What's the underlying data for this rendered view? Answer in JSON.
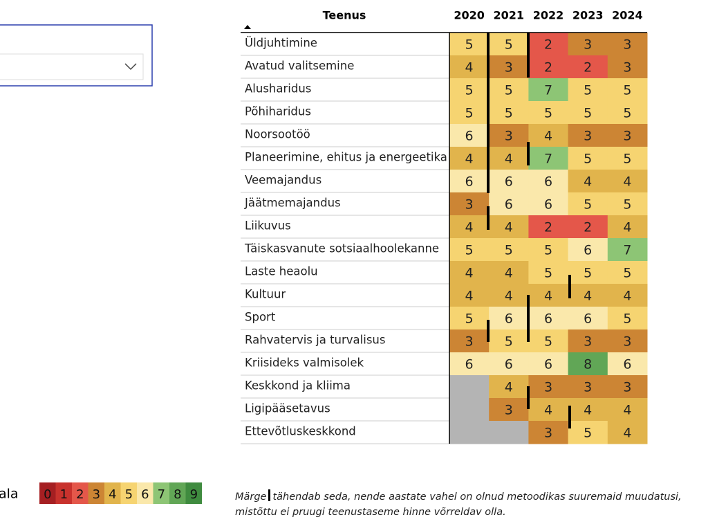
{
  "table": {
    "header": {
      "name": "Teenus",
      "years": [
        "2020",
        "2021",
        "2022",
        "2023",
        "2024"
      ]
    },
    "rows": [
      {
        "name": "Üldjuhtimine",
        "values": [
          5,
          5,
          2,
          3,
          3
        ]
      },
      {
        "name": "Avatud valitsemine",
        "values": [
          4,
          3,
          2,
          2,
          3
        ]
      },
      {
        "name": "Alusharidus",
        "values": [
          5,
          5,
          7,
          5,
          5
        ]
      },
      {
        "name": "Põhiharidus",
        "values": [
          5,
          5,
          5,
          5,
          5
        ]
      },
      {
        "name": "Noorsootöö",
        "values": [
          6,
          3,
          4,
          3,
          3
        ]
      },
      {
        "name": "Planeerimine, ehitus ja energeetika",
        "values": [
          4,
          4,
          7,
          5,
          5
        ]
      },
      {
        "name": "Veemajandus",
        "values": [
          6,
          6,
          6,
          4,
          4
        ]
      },
      {
        "name": "Jäätmemajandus",
        "values": [
          3,
          6,
          6,
          5,
          5
        ]
      },
      {
        "name": "Liikuvus",
        "values": [
          4,
          4,
          2,
          2,
          4
        ]
      },
      {
        "name": "Täiskasvanute sotsiaalhoolekanne",
        "values": [
          5,
          5,
          5,
          6,
          7
        ]
      },
      {
        "name": "Laste heaolu",
        "values": [
          4,
          4,
          5,
          5,
          5
        ]
      },
      {
        "name": "Kultuur",
        "values": [
          4,
          4,
          4,
          4,
          4
        ]
      },
      {
        "name": "Sport",
        "values": [
          5,
          6,
          6,
          6,
          5
        ]
      },
      {
        "name": "Rahvatervis ja turvalisus",
        "values": [
          3,
          5,
          5,
          3,
          3
        ]
      },
      {
        "name": "Kriisideks valmisolek",
        "values": [
          6,
          6,
          6,
          8,
          6
        ]
      },
      {
        "name": "Keskkond ja kliima",
        "values": [
          null,
          4,
          3,
          3,
          3
        ]
      },
      {
        "name": "Ligipääsetavus",
        "values": [
          null,
          3,
          4,
          4,
          4
        ]
      },
      {
        "name": "Ettevõtluskeskkond",
        "values": [
          null,
          null,
          3,
          5,
          4
        ]
      }
    ],
    "missing_color": "#b4b4b4"
  },
  "legend": {
    "title": "ala",
    "labels": [
      0,
      1,
      2,
      3,
      4,
      5,
      6,
      7,
      8,
      9
    ],
    "colors": [
      "#a51f22",
      "#c8322d",
      "#e4574a",
      "#cc8534",
      "#e1b44c",
      "#f6d471",
      "#fae8ab",
      "#8dc575",
      "#61a656",
      "#3f8b3f"
    ]
  },
  "note": {
    "prefix": "Märge",
    "text": "tähendab seda, nende aastate vahel on olnud metoodikas suuremaid muudatusi, mistõttu ei pruugi teenustaseme hinne võrreldav olla."
  }
}
